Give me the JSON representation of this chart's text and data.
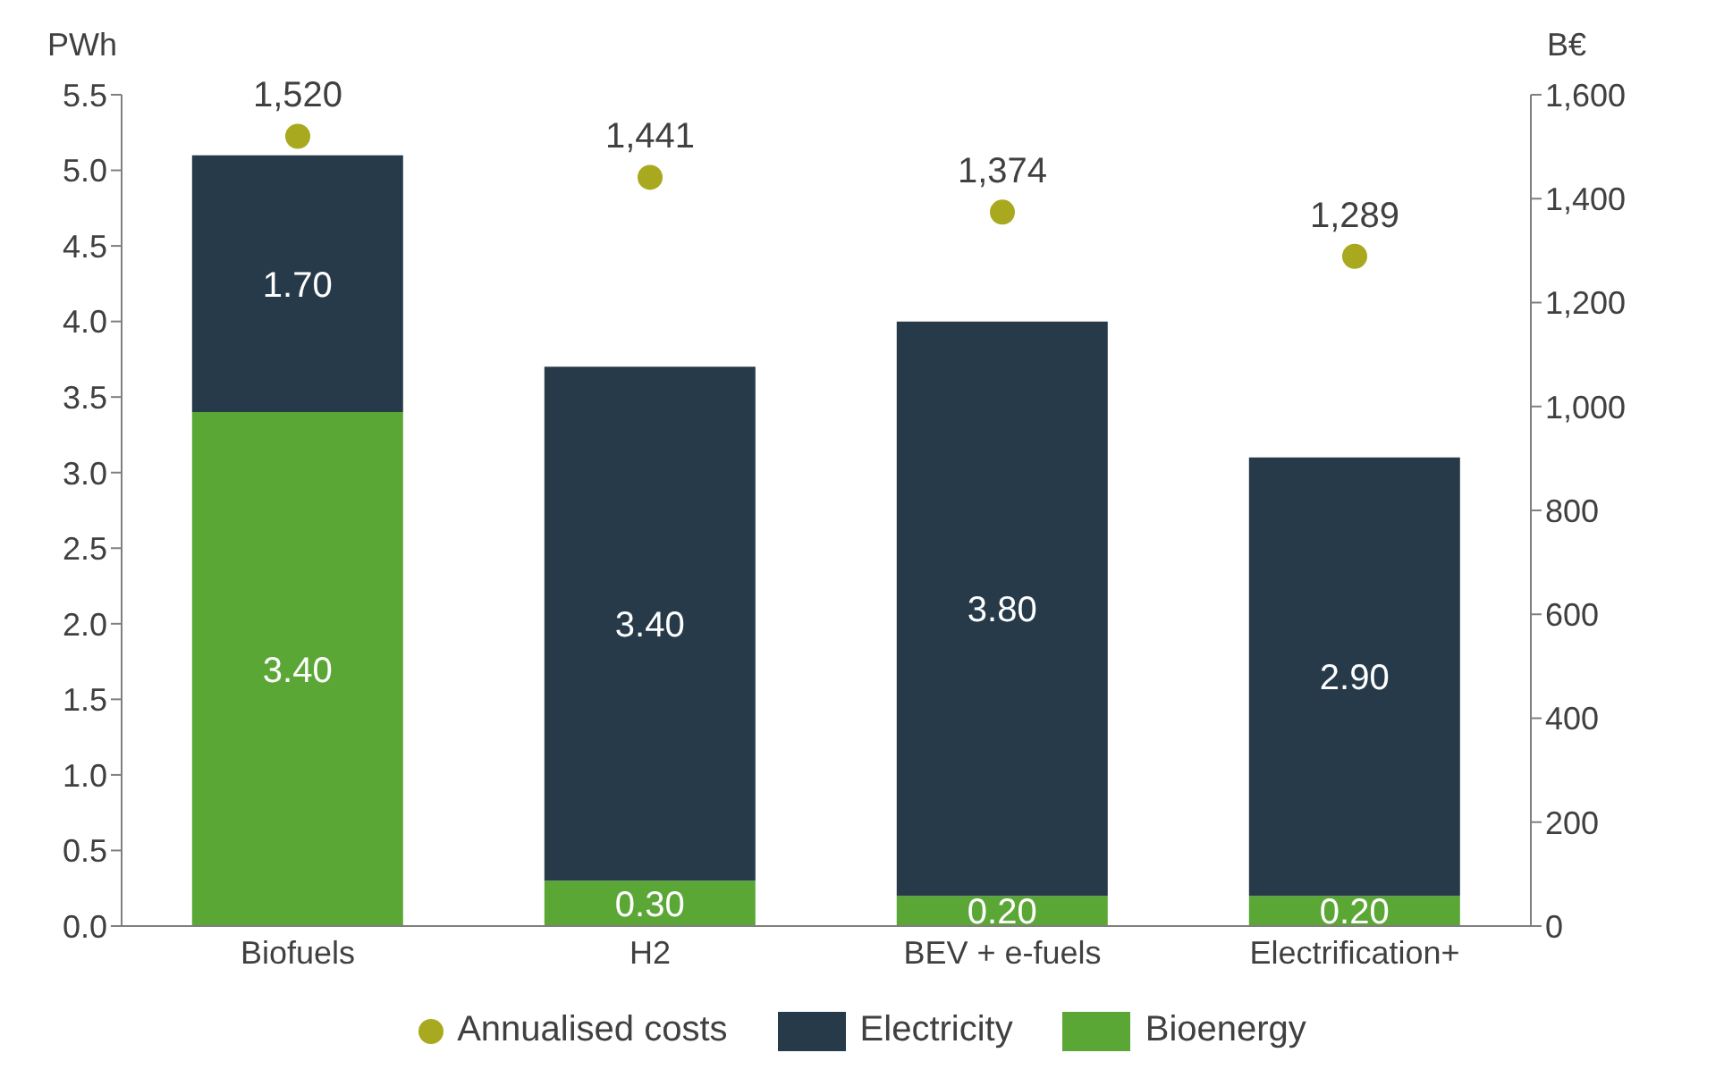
{
  "chart_data": {
    "type": "bar",
    "stacked": true,
    "ylabel": "PWh",
    "y2label": "B€",
    "categories": [
      "Biofuels",
      "H2",
      "BEV + e-fuels",
      "Electrification+"
    ],
    "series": [
      {
        "name": "Bioenergy",
        "color": "#5aa736",
        "values": [
          3.4,
          0.3,
          0.2,
          0.2
        ],
        "value_labels": [
          "3.40",
          "0.30",
          "0.20",
          "0.20"
        ]
      },
      {
        "name": "Electricity",
        "color": "#263a4a",
        "values": [
          1.7,
          3.4,
          3.8,
          2.9
        ],
        "value_labels": [
          "1.70",
          "3.40",
          "3.80",
          "2.90"
        ]
      },
      {
        "name": "Annualised costs",
        "type": "scatter",
        "axis": "y2",
        "color": "#a9a91f",
        "values": [
          1520,
          1441,
          1374,
          1289
        ],
        "value_labels": [
          "1,520",
          "1,441",
          "1,374",
          "1,289"
        ]
      }
    ],
    "ylim": [
      0,
      5.5
    ],
    "yticks": [
      {
        "value": 0,
        "label": "0.0"
      },
      {
        "value": 0.5,
        "label": "0.5"
      },
      {
        "value": 1,
        "label": "1.0"
      },
      {
        "value": 1.5,
        "label": "1.5"
      },
      {
        "value": 2,
        "label": "2.0"
      },
      {
        "value": 2.5,
        "label": "2.5"
      },
      {
        "value": 3,
        "label": "3.0"
      },
      {
        "value": 3.5,
        "label": "3.5"
      },
      {
        "value": 4,
        "label": "4.0"
      },
      {
        "value": 4.5,
        "label": "4.5"
      },
      {
        "value": 5,
        "label": "5.0"
      },
      {
        "value": 5.5,
        "label": "5.5"
      }
    ],
    "y2lim": [
      0,
      1600
    ],
    "y2ticks": [
      0,
      200,
      400,
      600,
      800,
      {
        "value": 1000,
        "label": "1,000"
      },
      {
        "value": 1200,
        "label": "1,200"
      },
      {
        "value": 1400,
        "label": "1,400"
      },
      {
        "value": 1600,
        "label": "1,600"
      }
    ],
    "grid": false,
    "legend": "bottom",
    "marker": "circle"
  }
}
